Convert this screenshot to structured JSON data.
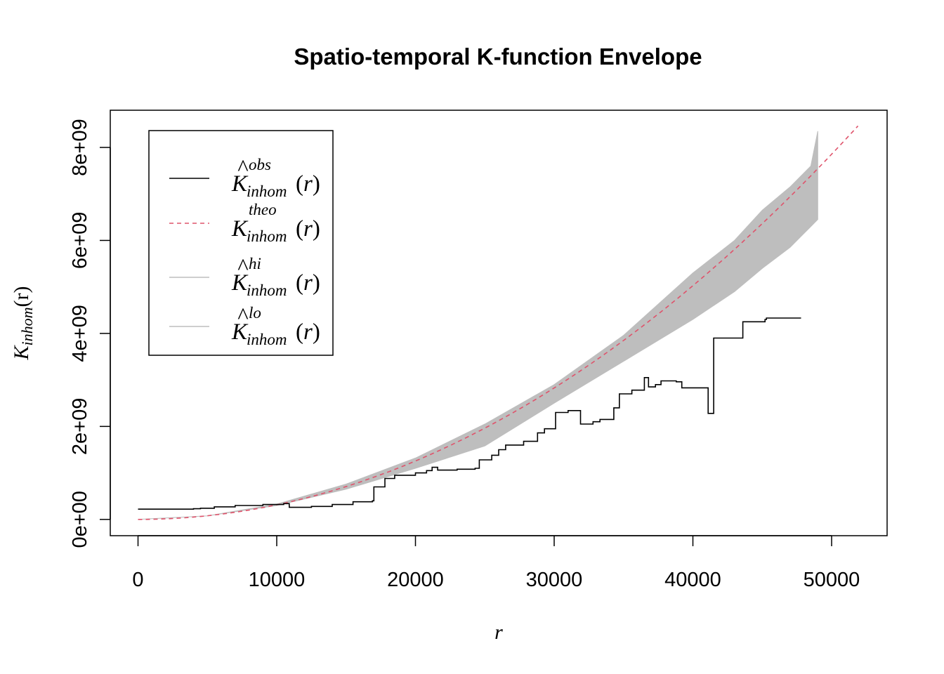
{
  "chart_data": {
    "type": "line",
    "title": "Spatio-temporal K-function Envelope",
    "xlabel": "r",
    "ylabel": {
      "main": "K",
      "sub": "inhom",
      "arg": "(r)"
    },
    "xlim": [
      -2000,
      54000
    ],
    "ylim": [
      -350000000,
      8800000000
    ],
    "x_ticks": [
      0,
      10000,
      20000,
      30000,
      40000,
      50000
    ],
    "x_tick_labels": [
      "0",
      "10000",
      "20000",
      "30000",
      "40000",
      "50000"
    ],
    "y_ticks": [
      0,
      2000000000,
      4000000000,
      6000000000,
      8000000000
    ],
    "y_tick_labels": [
      "0e+00",
      "2e+09",
      "4e+09",
      "6e+09",
      "8e+09"
    ],
    "grid": false,
    "legend_position": "top-left",
    "legend": [
      {
        "main": "K",
        "hat": true,
        "sub": "inhom",
        "sup": "obs",
        "arg": "(r)",
        "style": "solid",
        "color": "#000000"
      },
      {
        "main": "K",
        "hat": false,
        "sub": "inhom",
        "sup": "theo",
        "arg": "(r)",
        "style": "dashed",
        "color": "#DF536B"
      },
      {
        "main": "K",
        "hat": true,
        "sub": "inhom",
        "sup": "hi",
        "arg": "(r)",
        "style": "solid",
        "color": "#BEBEBE"
      },
      {
        "main": "K",
        "hat": true,
        "sub": "inhom",
        "sup": "lo",
        "arg": "(r)",
        "style": "solid",
        "color": "#BEBEBE"
      }
    ],
    "series": [
      {
        "key": "obs",
        "color": "#000000",
        "style": "step",
        "points": [
          [
            0,
            220000000
          ],
          [
            4000,
            230000000
          ],
          [
            4500,
            240000000
          ],
          [
            5500,
            270000000
          ],
          [
            7000,
            300000000
          ],
          [
            9000,
            320000000
          ],
          [
            10500,
            340000000
          ],
          [
            10900,
            260000000
          ],
          [
            12500,
            280000000
          ],
          [
            14000,
            320000000
          ],
          [
            15500,
            380000000
          ],
          [
            16900,
            400000000
          ],
          [
            17000,
            700000000
          ],
          [
            17800,
            880000000
          ],
          [
            18500,
            950000000
          ],
          [
            20000,
            1000000000
          ],
          [
            20800,
            1050000000
          ],
          [
            21200,
            1120000000
          ],
          [
            21600,
            1060000000
          ],
          [
            23000,
            1080000000
          ],
          [
            24300,
            1100000000
          ],
          [
            24600,
            1280000000
          ],
          [
            25500,
            1380000000
          ],
          [
            26000,
            1500000000
          ],
          [
            26500,
            1600000000
          ],
          [
            27800,
            1680000000
          ],
          [
            28800,
            1860000000
          ],
          [
            29300,
            1950000000
          ],
          [
            30100,
            2300000000
          ],
          [
            31000,
            2340000000
          ],
          [
            31900,
            2050000000
          ],
          [
            32800,
            2100000000
          ],
          [
            33300,
            2150000000
          ],
          [
            34300,
            2400000000
          ],
          [
            34700,
            2700000000
          ],
          [
            35600,
            2780000000
          ],
          [
            36500,
            3050000000
          ],
          [
            36800,
            2850000000
          ],
          [
            37300,
            2900000000
          ],
          [
            37700,
            2980000000
          ],
          [
            38800,
            2960000000
          ],
          [
            39200,
            2830000000
          ],
          [
            41000,
            2830000000
          ],
          [
            41100,
            2280000000
          ],
          [
            41400,
            2280000000
          ],
          [
            41500,
            3900000000
          ],
          [
            42600,
            3900000000
          ],
          [
            43600,
            4250000000
          ],
          [
            45200,
            4300000000
          ],
          [
            45300,
            4330000000
          ],
          [
            47800,
            4330000000
          ]
        ]
      },
      {
        "key": "theo",
        "color": "#DF536B",
        "style": "dashed",
        "x_range": [
          0,
          51900
        ],
        "coefficient": 3.14159,
        "exponent": 2
      },
      {
        "key": "envelope",
        "color": "#BEBEBE",
        "style": "band",
        "x": [
          0,
          5000,
          10000,
          15000,
          20000,
          25000,
          30000,
          35000,
          40000,
          43000,
          45000,
          47000,
          48500,
          49000
        ],
        "hi": [
          0,
          78000000,
          330000000,
          760000000,
          1320000000,
          2050000000,
          2900000000,
          3960000000,
          5300000000,
          6000000000,
          6650000000,
          7150000000,
          7600000000,
          8350000000
        ],
        "lo": [
          0,
          76000000,
          300000000,
          650000000,
          1100000000,
          1580000000,
          2500000000,
          3400000000,
          4300000000,
          4900000000,
          5400000000,
          5850000000,
          6300000000,
          6450000000
        ]
      }
    ]
  }
}
